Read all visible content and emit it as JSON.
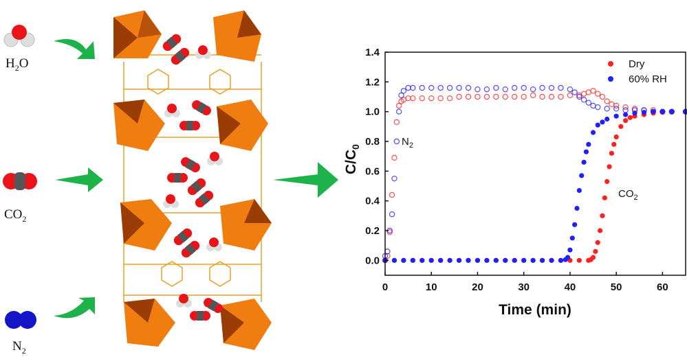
{
  "molecules": [
    {
      "label": "H2O",
      "main": "H",
      "sub": "2",
      "tail": "O",
      "icon": "water-molecule-icon"
    },
    {
      "label": "CO2",
      "main": "CO",
      "sub": "2",
      "tail": "",
      "icon": "co2-molecule-icon"
    },
    {
      "label": "N2",
      "main": "N",
      "sub": "2",
      "tail": "",
      "icon": "n2-molecule-icon"
    }
  ],
  "colors": {
    "arrow": "#1db34a",
    "oxygen": "#e8141a",
    "carbon": "#555555",
    "hydrogen": "#e6e6e6",
    "nitrogen": "#1414c8",
    "polyhedron": "#f07d10",
    "polyhedron_dark": "#9a3c06",
    "dry": "#ff2020",
    "wet": "#2020ff"
  },
  "chart_data": {
    "type": "scatter",
    "xlabel": "Time (min)",
    "ylabel_main": "C/C",
    "ylabel_sub": "0",
    "xlim": [
      0,
      65
    ],
    "ylim": [
      -0.1,
      1.4
    ],
    "xticks": [
      "0",
      "10",
      "20",
      "30",
      "40",
      "50",
      "60"
    ],
    "yticks": [
      "0.0",
      "0.2",
      "0.4",
      "0.6",
      "0.8",
      "1.0",
      "1.2",
      "1.4"
    ],
    "grid": false,
    "legend_position": "top-right",
    "legend": [
      {
        "name": "Dry",
        "color": "#ff2020"
      },
      {
        "name": "60% RH",
        "color": "#2020ff"
      }
    ],
    "annotations": [
      {
        "main": "N",
        "sub": "2"
      },
      {
        "main": "CO",
        "sub": "2"
      }
    ],
    "series": [
      {
        "gas": "N2",
        "condition": "Dry",
        "marker": "open",
        "color": "#ff2020",
        "x": [
          0,
          0.5,
          1,
          1.5,
          2,
          2.5,
          3,
          3.5,
          4,
          5,
          6,
          8,
          10,
          12,
          14,
          16,
          18,
          20,
          22,
          24,
          26,
          28,
          30,
          32,
          34,
          36,
          38,
          40,
          42,
          43,
          44,
          45,
          46,
          47,
          48,
          49,
          50,
          52,
          54,
          56,
          58,
          60,
          62,
          65
        ],
        "y": [
          0,
          0.03,
          0.19,
          0.44,
          0.69,
          0.93,
          1.04,
          1.07,
          1.08,
          1.09,
          1.09,
          1.09,
          1.09,
          1.09,
          1.09,
          1.1,
          1.1,
          1.1,
          1.1,
          1.1,
          1.1,
          1.1,
          1.1,
          1.11,
          1.1,
          1.1,
          1.1,
          1.11,
          1.11,
          1.12,
          1.13,
          1.14,
          1.12,
          1.1,
          1.07,
          1.05,
          1.04,
          1.03,
          1.02,
          1.01,
          1.01,
          1.0,
          1.0,
          1.0
        ]
      },
      {
        "gas": "N2",
        "condition": "60% RH",
        "marker": "open",
        "color": "#2020ff",
        "x": [
          0,
          0.5,
          1,
          1.5,
          2,
          2.5,
          3,
          3.5,
          4,
          5,
          6,
          8,
          10,
          12,
          14,
          16,
          18,
          20,
          22,
          24,
          26,
          28,
          30,
          32,
          34,
          36,
          38,
          40,
          41,
          42,
          43,
          44,
          45,
          46,
          48,
          50,
          52,
          54,
          56,
          58,
          60,
          62,
          65
        ],
        "y": [
          0.03,
          0.06,
          0.2,
          0.31,
          0.55,
          0.8,
          1.0,
          1.11,
          1.14,
          1.16,
          1.16,
          1.16,
          1.16,
          1.16,
          1.16,
          1.16,
          1.16,
          1.15,
          1.15,
          1.16,
          1.15,
          1.16,
          1.16,
          1.15,
          1.16,
          1.16,
          1.16,
          1.15,
          1.13,
          1.1,
          1.08,
          1.06,
          1.04,
          1.03,
          1.02,
          1.02,
          1.01,
          1.01,
          1.01,
          1.0,
          1.0,
          1.0,
          1.0
        ]
      },
      {
        "gas": "CO2",
        "condition": "Dry",
        "marker": "filled",
        "color": "#ff2020",
        "x": [
          0,
          2,
          4,
          6,
          8,
          10,
          12,
          14,
          16,
          18,
          20,
          22,
          24,
          26,
          28,
          30,
          32,
          34,
          36,
          38,
          40,
          42,
          44,
          44.5,
          45,
          45.5,
          46,
          46.5,
          47,
          47.5,
          48,
          48.5,
          49,
          49.5,
          50,
          51,
          52,
          53,
          54,
          56,
          58,
          60,
          62,
          65
        ],
        "y": [
          0,
          0,
          0,
          0,
          0,
          0,
          0,
          0,
          0,
          0,
          0,
          0,
          0,
          0,
          0,
          0,
          0,
          0,
          0,
          0,
          0,
          0,
          0,
          0.005,
          0.02,
          0.06,
          0.12,
          0.2,
          0.3,
          0.42,
          0.53,
          0.63,
          0.72,
          0.78,
          0.83,
          0.9,
          0.94,
          0.96,
          0.97,
          0.98,
          0.99,
          0.995,
          1.0,
          1.0
        ]
      },
      {
        "gas": "CO2",
        "condition": "60% RH",
        "marker": "filled",
        "color": "#2020ff",
        "x": [
          0,
          2,
          4,
          6,
          8,
          10,
          12,
          14,
          16,
          18,
          20,
          22,
          24,
          26,
          28,
          30,
          32,
          34,
          36,
          38,
          39,
          39.5,
          40,
          40.5,
          41,
          41.5,
          42,
          42.5,
          43,
          43.5,
          44,
          45,
          46,
          47,
          48,
          50,
          52,
          54,
          56,
          58,
          60,
          62,
          65
        ],
        "y": [
          0,
          0,
          0,
          0,
          0,
          0,
          0,
          0,
          0,
          0,
          0,
          0,
          0,
          0,
          0,
          0,
          0,
          0,
          0,
          0,
          0.005,
          0.02,
          0.07,
          0.15,
          0.24,
          0.35,
          0.47,
          0.57,
          0.66,
          0.73,
          0.78,
          0.86,
          0.91,
          0.93,
          0.95,
          0.97,
          0.98,
          0.99,
          0.995,
          1.0,
          1.0,
          1.0,
          1.0
        ]
      }
    ]
  }
}
